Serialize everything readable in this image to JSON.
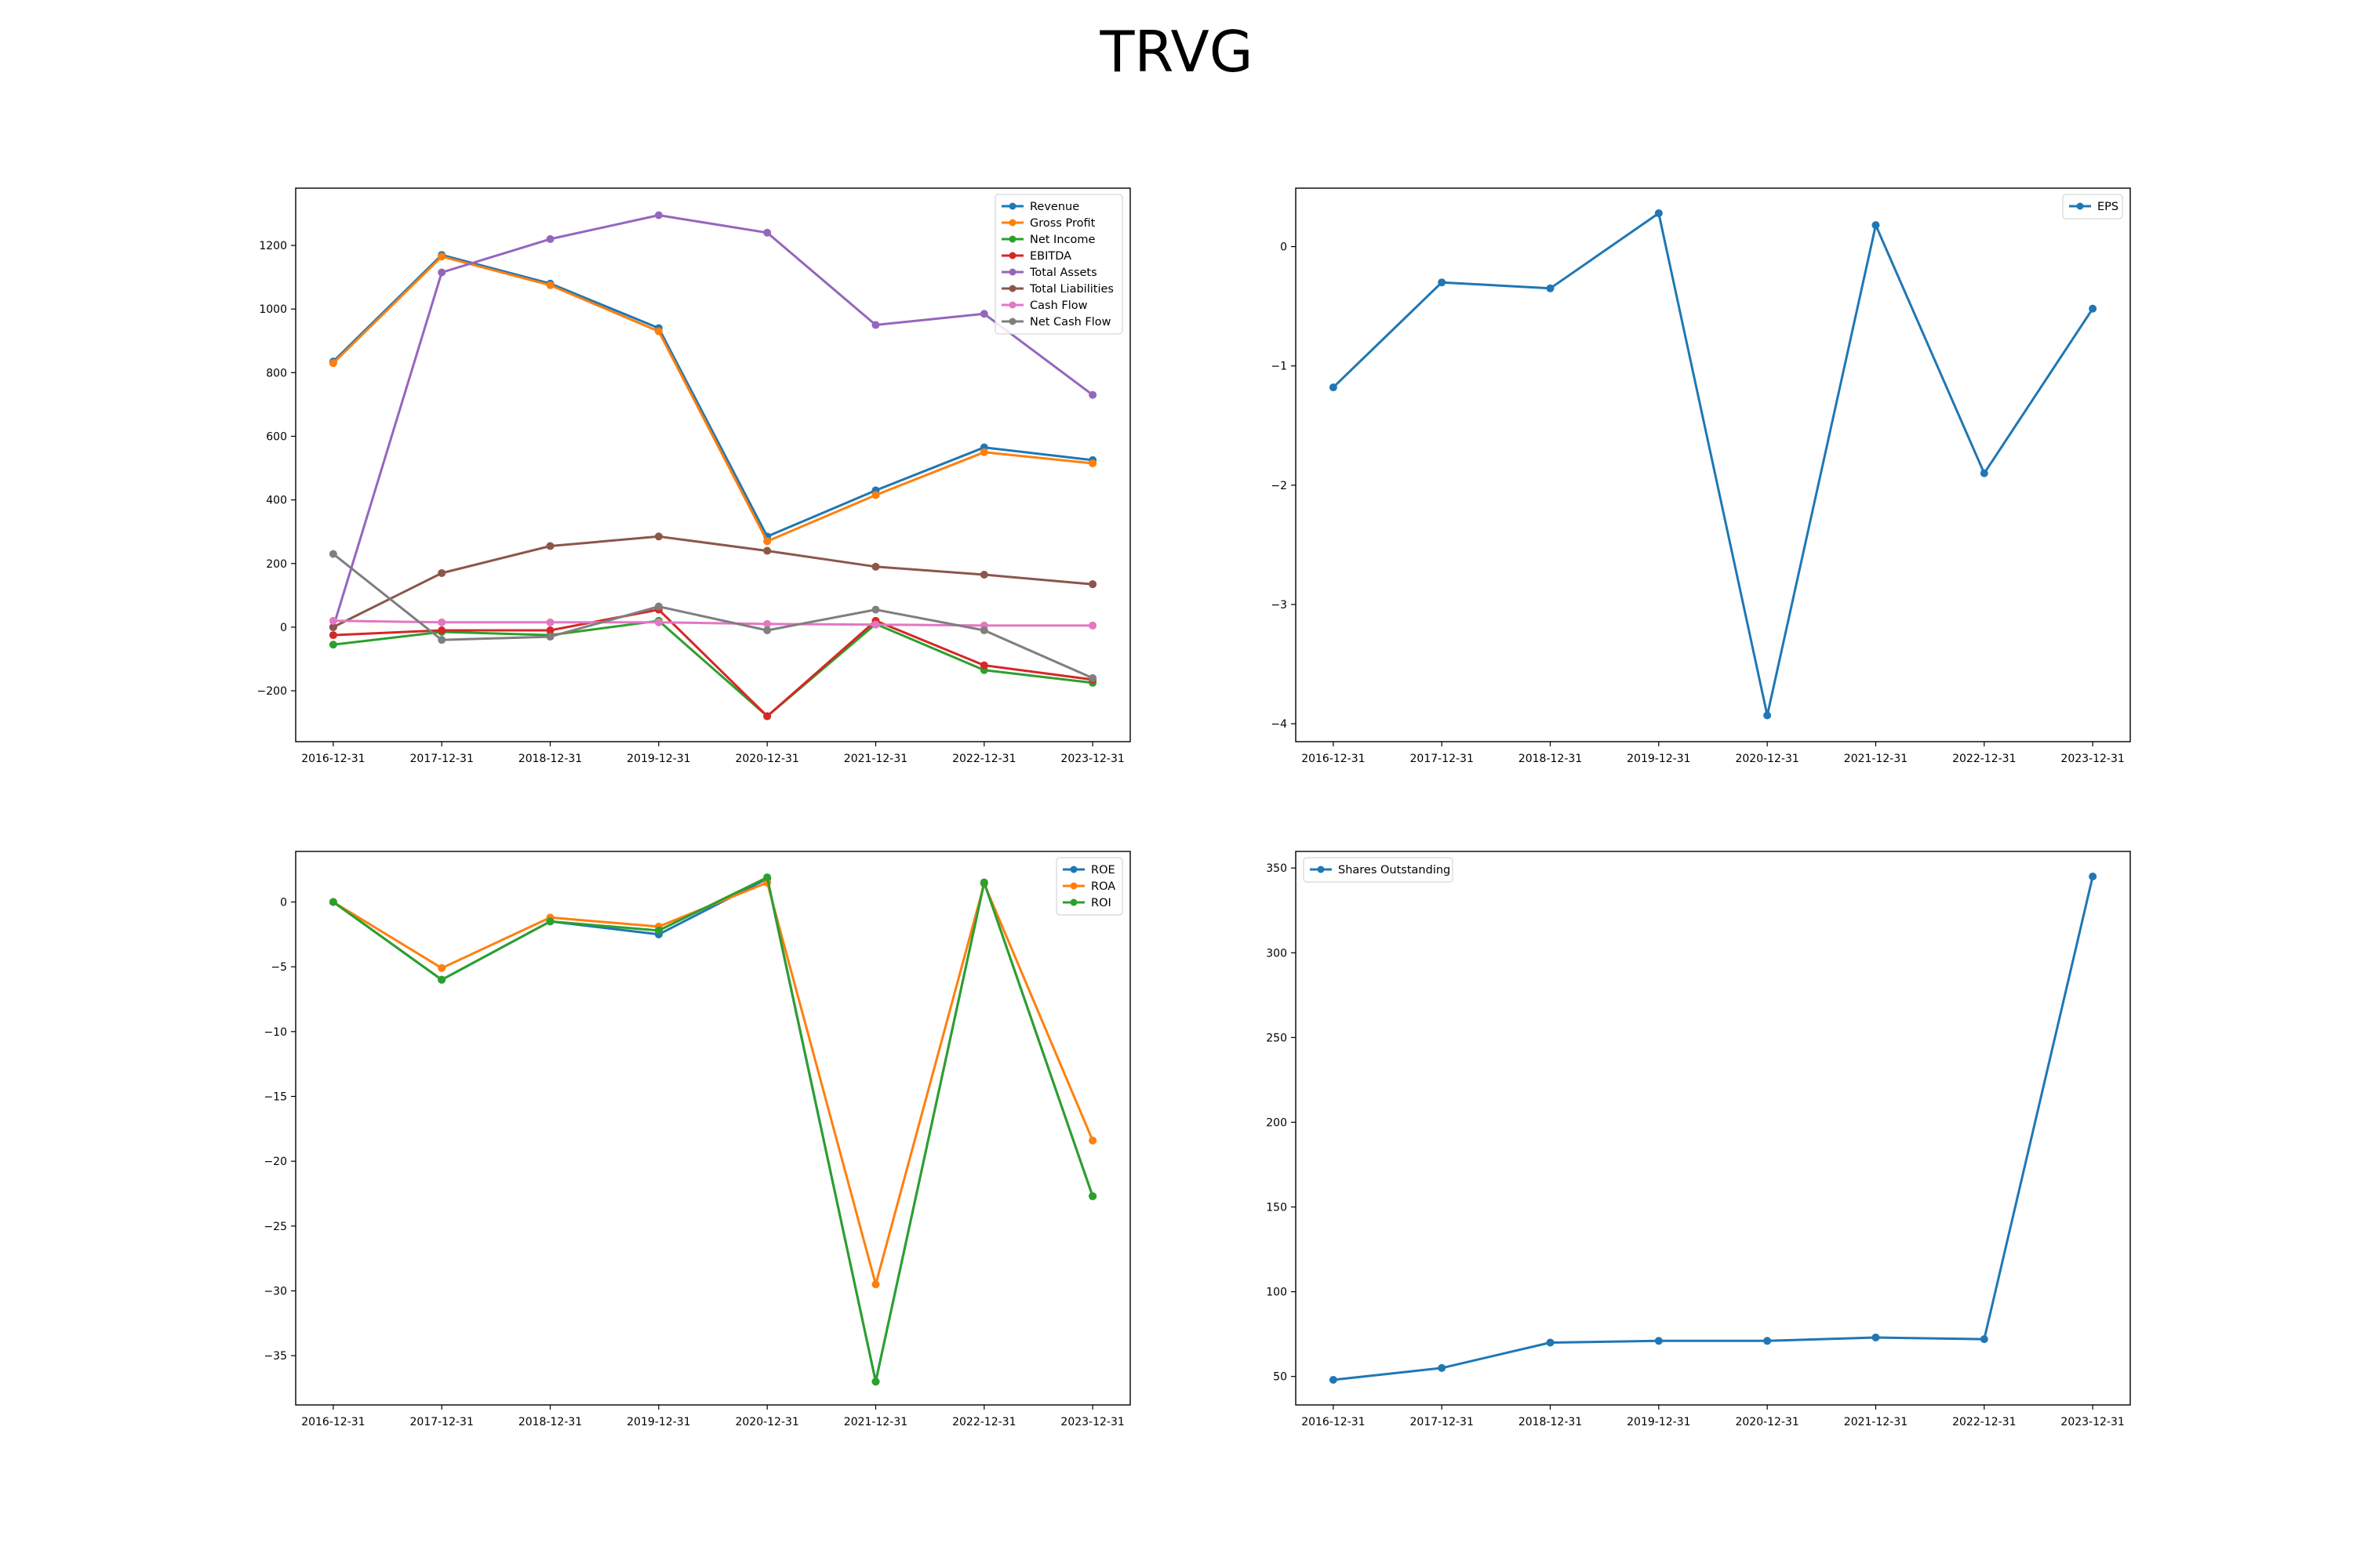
{
  "page": {
    "title": "TRVG"
  },
  "chart_data": [
    {
      "type": "line",
      "id": "fundamentals",
      "title": "",
      "xlabel": "",
      "ylabel": "",
      "categories": [
        "2016-12-31",
        "2017-12-31",
        "2018-12-31",
        "2019-12-31",
        "2020-12-31",
        "2021-12-31",
        "2022-12-31",
        "2023-12-31"
      ],
      "ylim": [
        -360,
        1380
      ],
      "yticks": [
        -200,
        0,
        200,
        400,
        600,
        800,
        1000,
        1200
      ],
      "grid": false,
      "legend": "top-right",
      "series": [
        {
          "name": "Revenue",
          "color": "#1f77b4",
          "values": [
            835,
            1170,
            1080,
            940,
            285,
            430,
            565,
            525
          ]
        },
        {
          "name": "Gross Profit",
          "color": "#ff7f0e",
          "values": [
            830,
            1165,
            1075,
            930,
            270,
            415,
            550,
            515
          ]
        },
        {
          "name": "Net Income",
          "color": "#2ca02c",
          "values": [
            -55,
            -15,
            -25,
            20,
            -280,
            10,
            -135,
            -175
          ]
        },
        {
          "name": "EBITDA",
          "color": "#d62728",
          "values": [
            -25,
            -10,
            -10,
            55,
            -280,
            20,
            -120,
            -165
          ]
        },
        {
          "name": "Total Assets",
          "color": "#9467bd",
          "values": [
            0,
            1115,
            1220,
            1295,
            1240,
            950,
            985,
            730
          ]
        },
        {
          "name": "Total Liabilities",
          "color": "#8c564b",
          "values": [
            0,
            170,
            255,
            285,
            240,
            190,
            165,
            135
          ]
        },
        {
          "name": "Cash Flow",
          "color": "#e377c2",
          "values": [
            20,
            15,
            15,
            15,
            10,
            8,
            5,
            5
          ]
        },
        {
          "name": "Net Cash Flow",
          "color": "#7f7f7f",
          "values": [
            230,
            -40,
            -30,
            65,
            -10,
            55,
            -10,
            -160
          ]
        }
      ]
    },
    {
      "type": "line",
      "id": "eps",
      "title": "",
      "xlabel": "",
      "ylabel": "",
      "categories": [
        "2016-12-31",
        "2017-12-31",
        "2018-12-31",
        "2019-12-31",
        "2020-12-31",
        "2021-12-31",
        "2022-12-31",
        "2023-12-31"
      ],
      "ylim": [
        -4.15,
        0.49
      ],
      "yticks": [
        -4,
        -3,
        -2,
        -1,
        0
      ],
      "grid": false,
      "legend": "top-right",
      "series": [
        {
          "name": "EPS",
          "color": "#1f77b4",
          "values": [
            -1.18,
            -0.3,
            -0.35,
            0.28,
            -3.93,
            0.18,
            -1.9,
            -0.52
          ]
        }
      ]
    },
    {
      "type": "line",
      "id": "returns",
      "title": "",
      "xlabel": "",
      "ylabel": "",
      "categories": [
        "2016-12-31",
        "2017-12-31",
        "2018-12-31",
        "2019-12-31",
        "2020-12-31",
        "2021-12-31",
        "2022-12-31",
        "2023-12-31"
      ],
      "ylim": [
        -38.8,
        3.9
      ],
      "yticks": [
        -35,
        -30,
        -25,
        -20,
        -15,
        -10,
        -5,
        0
      ],
      "grid": false,
      "legend": "top-right",
      "series": [
        {
          "name": "ROE",
          "color": "#1f77b4",
          "values": [
            0,
            -6.0,
            -1.5,
            -2.5,
            1.8,
            -37.0,
            1.5,
            -22.7
          ]
        },
        {
          "name": "ROA",
          "color": "#ff7f0e",
          "values": [
            0,
            -5.1,
            -1.2,
            -1.9,
            1.5,
            -29.5,
            1.4,
            -18.4
          ]
        },
        {
          "name": "ROI",
          "color": "#2ca02c",
          "values": [
            0,
            -6.0,
            -1.5,
            -2.2,
            1.9,
            -37.0,
            1.5,
            -22.7
          ]
        }
      ]
    },
    {
      "type": "line",
      "id": "shares",
      "title": "",
      "xlabel": "",
      "ylabel": "",
      "categories": [
        "2016-12-31",
        "2017-12-31",
        "2018-12-31",
        "2019-12-31",
        "2020-12-31",
        "2021-12-31",
        "2022-12-31",
        "2023-12-31"
      ],
      "ylim": [
        33.2,
        359.8
      ],
      "yticks": [
        50,
        100,
        150,
        200,
        250,
        300,
        350
      ],
      "grid": false,
      "legend": "top-left",
      "series": [
        {
          "name": "Shares Outstanding",
          "color": "#1f77b4",
          "values": [
            48,
            55,
            70,
            71,
            71,
            73,
            72,
            345
          ]
        }
      ]
    }
  ]
}
